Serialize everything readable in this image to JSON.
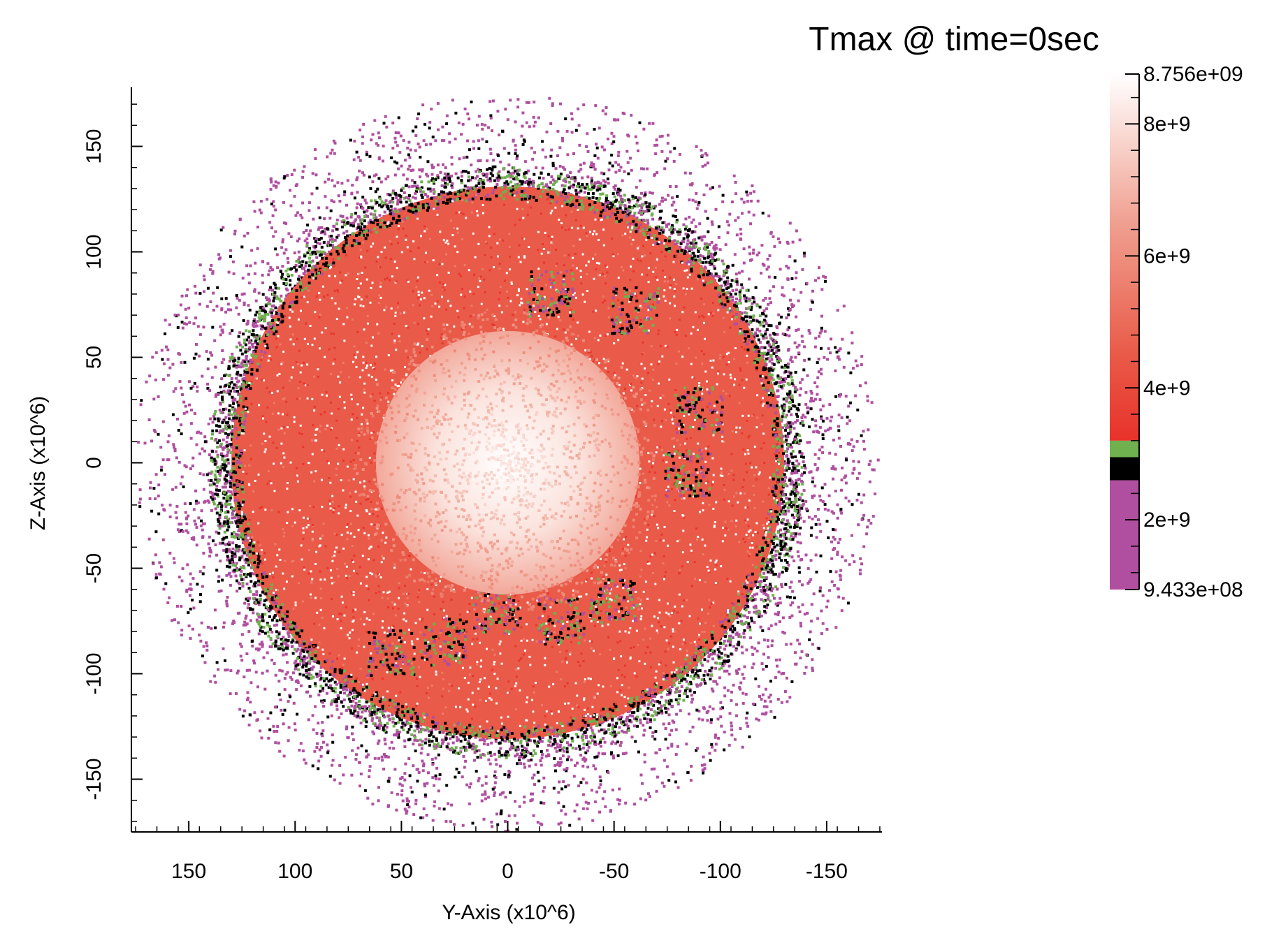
{
  "chart_data": {
    "type": "scatter",
    "title": "Tmax @ time=0sec",
    "xlabel": "Y-Axis (x10^6)",
    "ylabel": "Z-Axis (x10^6)",
    "x_reversed": true,
    "xlim": [
      177,
      -176
    ],
    "ylim": [
      -175,
      178
    ],
    "x_ticks": [
      150,
      100,
      50,
      0,
      -50,
      -100,
      -150
    ],
    "y_ticks": [
      150,
      100,
      50,
      0,
      -50,
      -100,
      -150
    ],
    "x_tick_labels": [
      "150",
      "100",
      "50",
      "0",
      "-50",
      "-100",
      "-150"
    ],
    "y_tick_labels": [
      "150",
      "100",
      "50",
      "0",
      "-50",
      "-100",
      "-150"
    ],
    "grid": false,
    "legend": "colorbar-right",
    "colorbar": {
      "min": 943300000.0,
      "max": 8756000000.0,
      "min_label": "9.433e+08",
      "max_label": "8.756e+09",
      "ticks": [
        2000000000.0,
        4000000000.0,
        6000000000.0,
        8000000000.0
      ],
      "tick_labels": [
        "2e+9",
        "4e+9",
        "6e+9",
        "8e+9"
      ],
      "bands": [
        {
          "from": 943300000.0,
          "to": 2600000000.0,
          "color": "#b04fa0"
        },
        {
          "from": 2600000000.0,
          "to": 2950000000.0,
          "color": "#000000"
        },
        {
          "from": 2950000000.0,
          "to": 3200000000.0,
          "color": "#6fb04f"
        },
        {
          "from": 3200000000.0,
          "to": 8756000000.0,
          "color": "gradient"
        }
      ],
      "gradient_stops": [
        {
          "value": 3200000000.0,
          "color": "#e8322a"
        },
        {
          "value": 4500000000.0,
          "color": "#e95a48"
        },
        {
          "value": 6500000000.0,
          "color": "#f0a090"
        },
        {
          "value": 8756000000.0,
          "color": "#ffffff"
        }
      ]
    },
    "regions": [
      {
        "name": "hot core",
        "center": [
          0,
          0
        ],
        "radius": 62,
        "value_center": 8700000000.0,
        "value_edge": 6000000000.0
      },
      {
        "name": "main body",
        "center": [
          0,
          0
        ],
        "radius": 130,
        "value": 4500000000.0
      },
      {
        "name": "outer shell",
        "center": [
          0,
          0
        ],
        "radius_range": [
          125,
          140
        ],
        "value": 3000000000.0
      },
      {
        "name": "halo",
        "center": [
          0,
          0
        ],
        "radius_range": [
          130,
          175
        ],
        "value": 1500000000.0
      }
    ]
  }
}
